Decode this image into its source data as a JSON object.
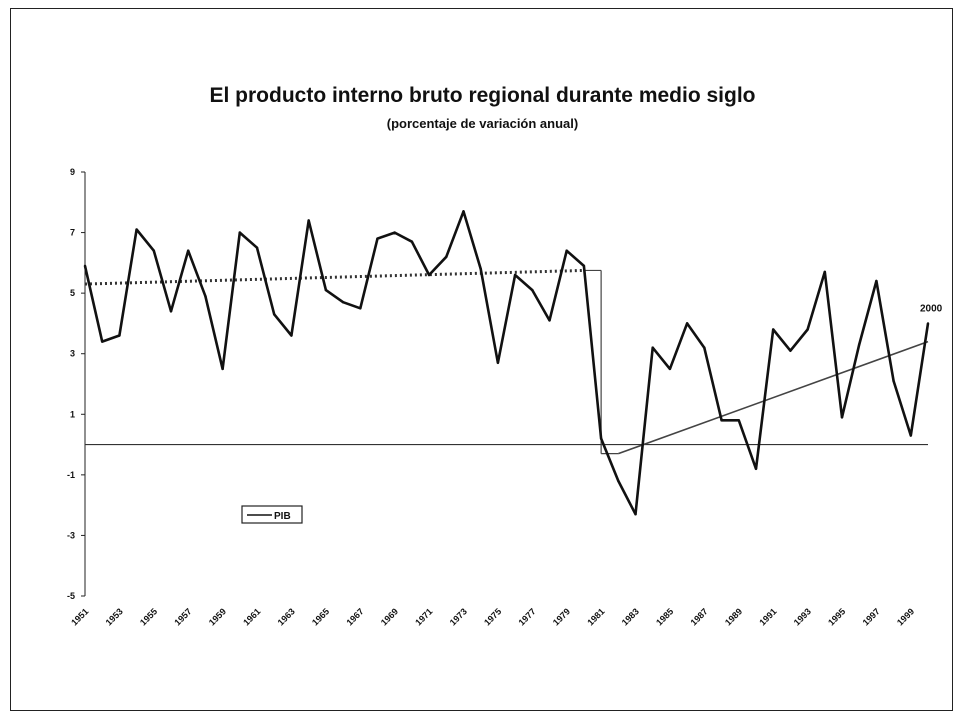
{
  "chart_data": {
    "type": "line",
    "title": "El producto interno bruto regional durante medio siglo",
    "subtitle": "(porcentaje de variación anual)",
    "xlabel": "",
    "ylabel": "",
    "ylim": [
      -5,
      9
    ],
    "y_ticks": [
      9,
      7,
      5,
      3,
      1,
      -1,
      -3,
      -5
    ],
    "x_tick_labels": [
      "1951",
      "1953",
      "1955",
      "1957",
      "1959",
      "1961",
      "1963",
      "1965",
      "1967",
      "1969",
      "1971",
      "1973",
      "1975",
      "1977",
      "1979",
      "1981",
      "1983",
      "1985",
      "1987",
      "1989",
      "1991",
      "1993",
      "1995",
      "1997",
      "1999"
    ],
    "legend": {
      "placement": "lower-left",
      "label": "PIB"
    },
    "annotation": "2000",
    "x": [
      1951,
      1952,
      1953,
      1954,
      1955,
      1956,
      1957,
      1958,
      1959,
      1960,
      1961,
      1962,
      1963,
      1964,
      1965,
      1966,
      1967,
      1968,
      1969,
      1970,
      1971,
      1972,
      1973,
      1974,
      1975,
      1976,
      1977,
      1978,
      1979,
      1980,
      1981,
      1982,
      1983,
      1984,
      1985,
      1986,
      1987,
      1988,
      1989,
      1990,
      1991,
      1992,
      1993,
      1994,
      1995,
      1996,
      1997,
      1998,
      1999,
      2000
    ],
    "series": [
      {
        "name": "PIB",
        "values": [
          5.9,
          3.4,
          3.6,
          7.1,
          6.4,
          4.4,
          6.4,
          4.9,
          2.5,
          7.0,
          6.5,
          4.3,
          3.6,
          7.4,
          5.1,
          4.7,
          4.5,
          6.8,
          7.0,
          6.7,
          5.6,
          6.2,
          7.7,
          5.8,
          2.7,
          5.6,
          5.1,
          4.1,
          6.4,
          5.9,
          0.2,
          -1.2,
          -2.3,
          3.2,
          2.5,
          4.0,
          3.2,
          0.8,
          0.8,
          -0.8,
          3.8,
          3.1,
          3.8,
          5.7,
          0.9,
          3.3,
          5.4,
          2.1,
          0.3,
          4.0
        ]
      }
    ],
    "trend_1951_1980": {
      "x": [
        1951,
        1980
      ],
      "values": [
        5.3,
        5.75
      ]
    },
    "trend_1981_2000": {
      "x": [
        1982,
        2000
      ],
      "values": [
        -0.3,
        3.4
      ]
    },
    "reference_line": 0,
    "colors": {
      "line": "#111111",
      "trend_dotted": "#333333",
      "trend_solid": "#444444"
    }
  }
}
